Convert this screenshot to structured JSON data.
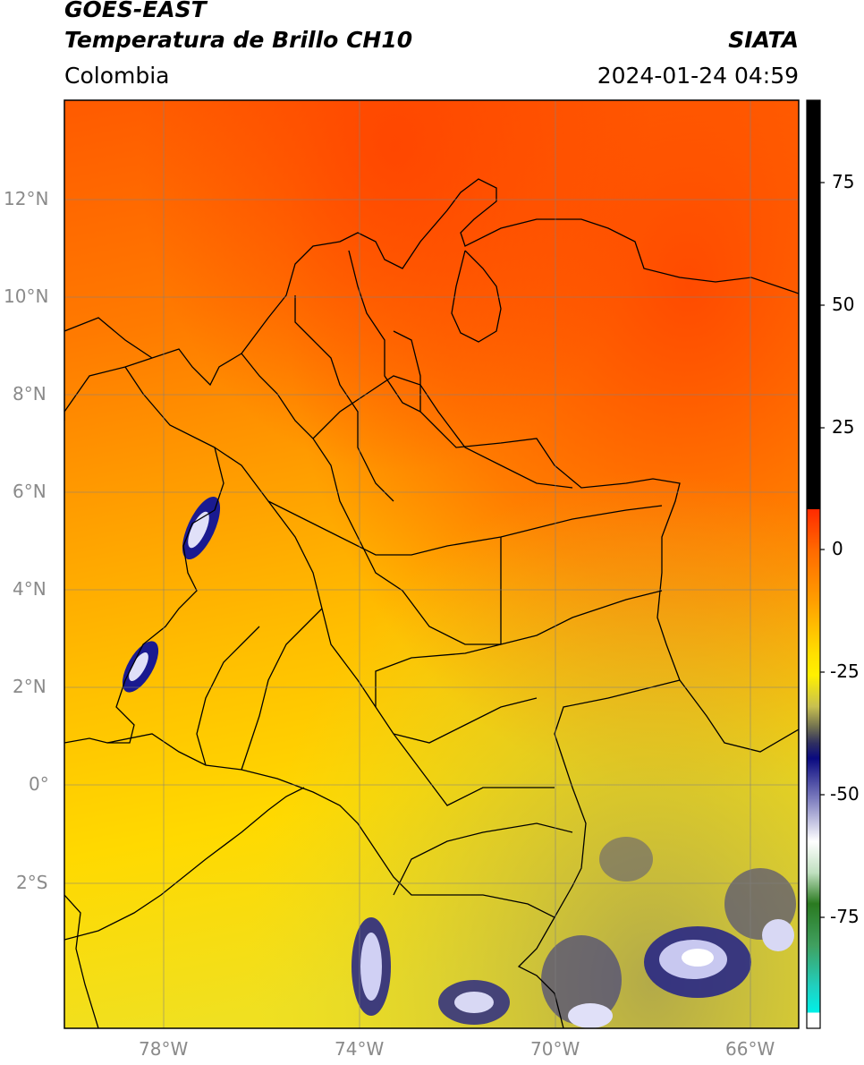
{
  "header": {
    "satellite": "GOES-EAST",
    "product": "Temperatura de Brillo CH10",
    "organization": "SIATA",
    "region": "Colombia",
    "datetime": "2024-01-24 04:59"
  },
  "map": {
    "lat_labels": [
      "12°N",
      "10°N",
      "8°N",
      "6°N",
      "4°N",
      "2°N",
      "0°",
      "2°S"
    ],
    "lon_labels": [
      "78°W",
      "74°W",
      "70°W",
      "66°W"
    ],
    "grid": true
  },
  "colorbar": {
    "ticks": [
      "75",
      "50",
      "25",
      "0",
      "-25",
      "-50",
      "-75"
    ],
    "colors": {
      "warm_top": "#ff4400",
      "orange": "#ff8c00",
      "amber": "#ffb300",
      "yellow": "#ffe600",
      "olive": "#b8b04a",
      "dark_blue": "#101090",
      "white": "#ffffff",
      "green": "#3a8f2a",
      "cyan": "#20e0d0",
      "black": "#000000"
    }
  }
}
